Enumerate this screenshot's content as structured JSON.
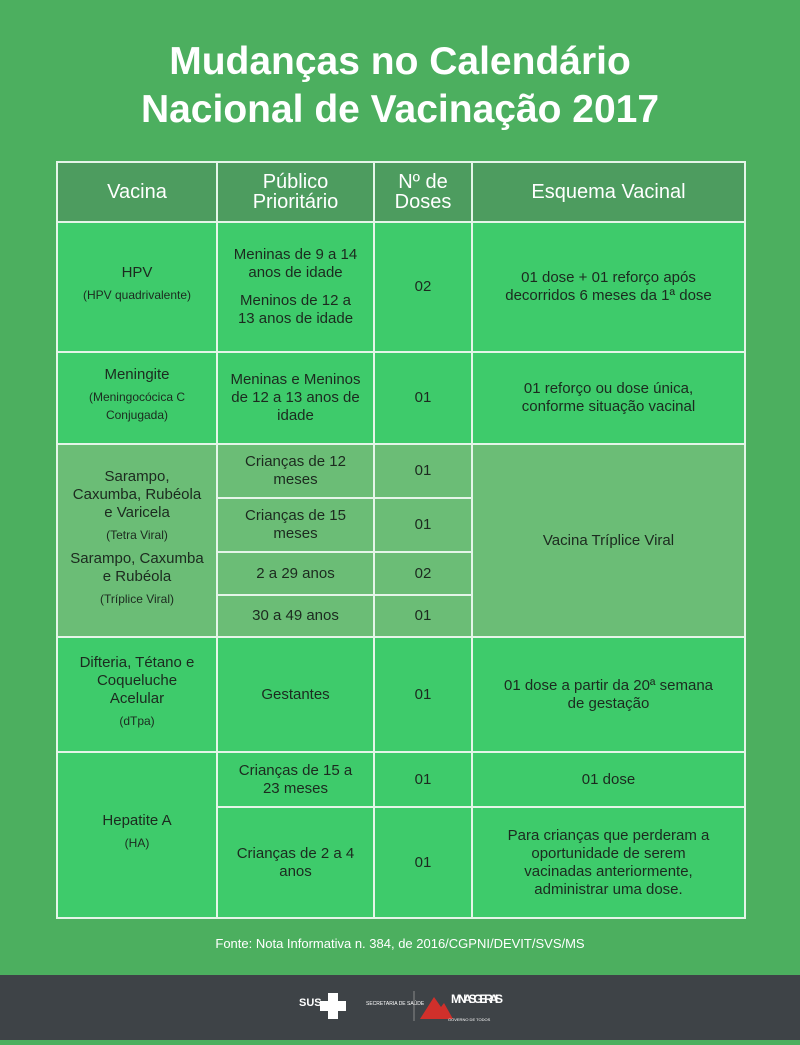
{
  "title": [
    "Mudanças no Calendário",
    "Nacional de Vacinação 2017"
  ],
  "table": {
    "header": [
      "Vacina",
      "Público Prioritário",
      "Nº de Doses",
      "Esquema Vacinal"
    ],
    "groups": [
      {
        "vaccine": [
          {
            "name": "HPV",
            "detail": "(HPV quadrivalente)"
          }
        ],
        "rows": [
          {
            "public": [
              "Meninas de 9 a 14 anos de idade",
              "Meninos de 12 a 13 anos de idade"
            ],
            "doses": "02"
          }
        ],
        "schedule": "01 dose + 01 reforço após decorridos 6 meses da 1ª dose"
      },
      {
        "vaccine": [
          {
            "name": "Meningite",
            "detail": "(Meningocócica C Conjugada)"
          }
        ],
        "rows": [
          {
            "public": [
              "Meninas e Meninos de 12 a 13 anos de idade"
            ],
            "doses": "01"
          }
        ],
        "schedule": "01 reforço ou dose única, conforme situação vacinal"
      },
      {
        "vaccine": [
          {
            "name": "Sarampo, Caxumba, Rubéola e Varicela",
            "detail": "(Tetra Viral)"
          },
          {
            "name": "Sarampo, Caxumba e Rubéola",
            "detail": "(Tríplice Viral)"
          }
        ],
        "rows": [
          {
            "public": [
              "Crianças de 12 meses"
            ],
            "doses": "01"
          },
          {
            "public": [
              "Crianças de 15 meses"
            ],
            "doses": "01"
          },
          {
            "public": [
              "2 a 29 anos"
            ],
            "doses": "02"
          },
          {
            "public": [
              "30 a 49 anos"
            ],
            "doses": "01"
          }
        ],
        "schedule": "Vacina Tríplice Viral"
      },
      {
        "vaccine": [
          {
            "name": "Difteria, Tétano e Coqueluche Acelular",
            "detail": "(dTpa)"
          }
        ],
        "rows": [
          {
            "public": [
              "Gestantes"
            ],
            "doses": "01"
          }
        ],
        "schedule": "01 dose a partir da 20ª semana de gestação"
      },
      {
        "vaccine": [
          {
            "name": "Hepatite A",
            "detail": "(HA)"
          }
        ],
        "rows": [
          {
            "public": [
              "Crianças de 15 a 23 meses"
            ],
            "doses": "01",
            "schedule": "01 dose"
          },
          {
            "public": [
              "Crianças de 2 a 4 anos"
            ],
            "doses": "01",
            "schedule": "Para crianças que perderam a oportunidade de serem vacinadas anteriormente, administrar uma dose."
          }
        ]
      }
    ]
  },
  "source": "Fonte: Nota Informativa n. 384, de 2016/CGPNI/DEVIT/SVS/MS",
  "footer": {
    "sus": "SUS",
    "secretaria": "SECRETARIA DE SAÚDE",
    "state": "MINAS GERAIS",
    "slogan": "GOVERNO DE TODOS"
  }
}
